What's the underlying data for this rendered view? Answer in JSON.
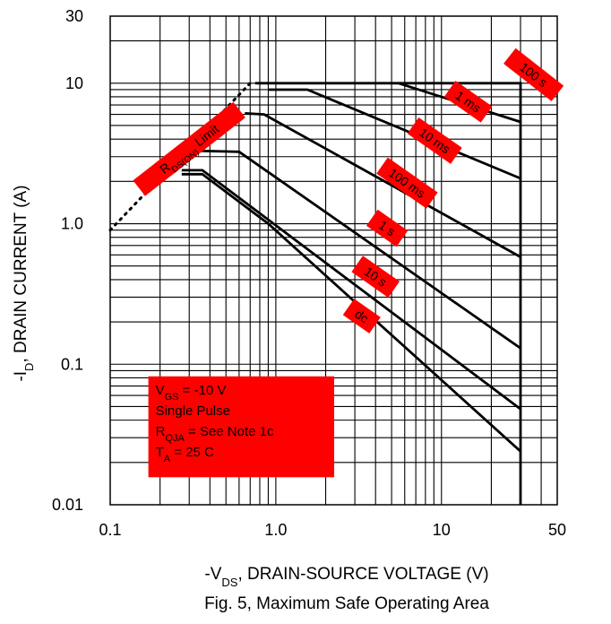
{
  "chart_data": {
    "type": "line",
    "title": "Fig. 5,  Maximum Safe Operating Area",
    "xlabel": {
      "pre": "-V",
      "sub": "DS",
      "post": ", DRAIN-SOURCE VOLTAGE (V)"
    },
    "ylabel": {
      "pre": "-I",
      "sub": "D",
      "post": ", DRAIN CURRENT (A)"
    },
    "xscale": "log",
    "yscale": "log",
    "xlim": [
      0.1,
      50
    ],
    "ylim": [
      0.01,
      30
    ],
    "grid": true,
    "x_ticks": [
      {
        "value": 0.1,
        "label": "0.1"
      },
      {
        "value": 1,
        "label": "1.0"
      },
      {
        "value": 10,
        "label": "10"
      },
      {
        "value": 50,
        "label": "50"
      }
    ],
    "y_ticks": [
      {
        "value": 0.01,
        "label": "0.01"
      },
      {
        "value": 0.1,
        "label": "0.1"
      },
      {
        "value": 1,
        "label": "1.0"
      },
      {
        "value": 10,
        "label": "10"
      },
      {
        "value": 30,
        "label": "30"
      }
    ],
    "limit_line": {
      "points": [
        [
          0.1,
          0.9
        ],
        [
          0.7,
          10
        ]
      ],
      "style": "dotted",
      "label": {
        "pre": "R",
        "sub": "DS(ON)",
        "post": " Limit"
      }
    },
    "series": [
      {
        "name": "100 s",
        "points": [
          [
            0.75,
            10
          ],
          [
            30,
            10
          ],
          [
            30,
            0.01
          ]
        ]
      },
      {
        "name": "1 ms",
        "points": [
          [
            5.5,
            10
          ],
          [
            30,
            5.3
          ]
        ]
      },
      {
        "name": "10 ms",
        "points": [
          [
            0.9,
            9
          ],
          [
            1.55,
            9
          ],
          [
            30,
            2.1
          ]
        ]
      },
      {
        "name": "100 ms",
        "points": [
          [
            0.65,
            6.1
          ],
          [
            0.85,
            6.0
          ],
          [
            30,
            0.58
          ]
        ]
      },
      {
        "name": "1 s",
        "points": [
          [
            0.35,
            3.3
          ],
          [
            0.6,
            3.25
          ],
          [
            30,
            0.13
          ]
        ]
      },
      {
        "name": "10 s",
        "points": [
          [
            0.27,
            2.4
          ],
          [
            0.36,
            2.4
          ],
          [
            30,
            0.048
          ]
        ]
      },
      {
        "name": "dc",
        "points": [
          [
            30,
            0.024
          ]
        ]
      }
    ],
    "labels": [
      {
        "series": "100 s",
        "text": "100  s",
        "at": [
          36,
          11.5
        ],
        "rotate": 38
      },
      {
        "series": "1 ms",
        "text": "1 ms",
        "at": [
          14.5,
          7.4
        ],
        "rotate": 35
      },
      {
        "series": "10 ms",
        "text": "10 ms",
        "at": [
          9.1,
          3.9
        ],
        "rotate": 35
      },
      {
        "series": "100 ms",
        "text": "100 ms",
        "at": [
          6.2,
          1.95
        ],
        "rotate": 35
      },
      {
        "series": "1 s",
        "text": "1 s",
        "at": [
          4.7,
          0.93
        ],
        "rotate": 35
      },
      {
        "series": "10 s",
        "text": "10 s",
        "at": [
          4.0,
          0.42
        ],
        "rotate": 35
      },
      {
        "series": "dc",
        "text": "dc",
        "at": [
          3.3,
          0.22
        ],
        "rotate": 35
      }
    ],
    "dc_curve": {
      "points": [
        [
          0.27,
          2.25
        ],
        [
          0.36,
          2.25
        ],
        [
          0.9,
          1.0
        ],
        [
          30,
          0.024
        ]
      ]
    },
    "conditions": [
      {
        "pre": "V",
        "sub": "GS",
        "post": " = -10 V"
      },
      {
        "pre": "Single Pulse",
        "sub": "",
        "post": ""
      },
      {
        "pre": "R",
        "sub": "QJA",
        "post": " = See Note 1c"
      },
      {
        "pre": "T",
        "sub": "A",
        "post": " = 25 C"
      }
    ],
    "colors": {
      "line": "#000000",
      "grid": "#000000",
      "label_bg": "#ff0000"
    }
  }
}
